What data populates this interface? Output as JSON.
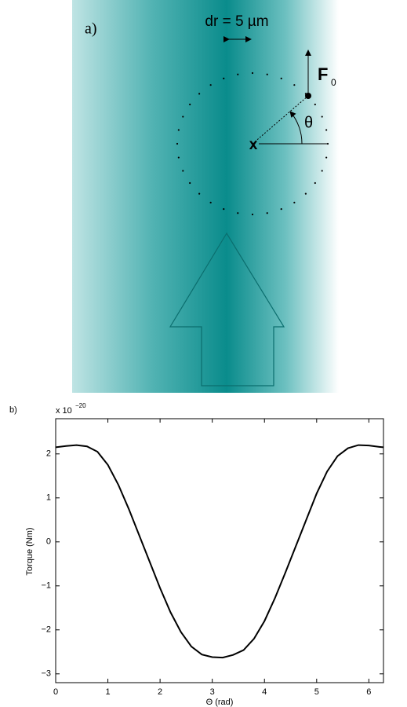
{
  "panel_a": {
    "label": "a)",
    "dr_label": "dr = 5 µm",
    "force": "F",
    "force_sub": "0",
    "angle": "θ",
    "center": "x"
  },
  "chart_data": {
    "type": "line",
    "panel_label": "b)",
    "scale_label": "x 10",
    "scale_exponent": "−20",
    "xlabel": "Θ (rad)",
    "ylabel": "Torque (Nm)",
    "x": [
      0,
      0.2,
      0.4,
      0.6,
      0.8,
      1.0,
      1.2,
      1.4,
      1.6,
      1.8,
      2.0,
      2.2,
      2.4,
      2.6,
      2.8,
      3.0,
      3.2,
      3.4,
      3.6,
      3.8,
      4.0,
      4.2,
      4.4,
      4.6,
      4.8,
      5.0,
      5.2,
      5.4,
      5.6,
      5.8,
      6.0,
      6.2,
      6.28
    ],
    "series": [
      {
        "name": "Torque",
        "color": "#000000",
        "values": [
          2.15,
          2.18,
          2.2,
          2.17,
          2.05,
          1.75,
          1.3,
          0.75,
          0.15,
          -0.45,
          -1.05,
          -1.6,
          -2.05,
          -2.38,
          -2.56,
          -2.62,
          -2.63,
          -2.57,
          -2.46,
          -2.2,
          -1.8,
          -1.28,
          -0.7,
          -0.1,
          0.5,
          1.1,
          1.6,
          1.95,
          2.13,
          2.2,
          2.19,
          2.16,
          2.15
        ]
      }
    ],
    "xlim": [
      0,
      6.28
    ],
    "xticks": [
      0,
      1,
      2,
      3,
      4,
      5,
      6
    ],
    "ylim": [
      -3.2,
      2.8
    ],
    "yticks": [
      {
        "value": -3,
        "label": "−3"
      },
      {
        "value": -2,
        "label": "−2"
      },
      {
        "value": -1,
        "label": "−1"
      },
      0,
      1,
      2
    ]
  }
}
